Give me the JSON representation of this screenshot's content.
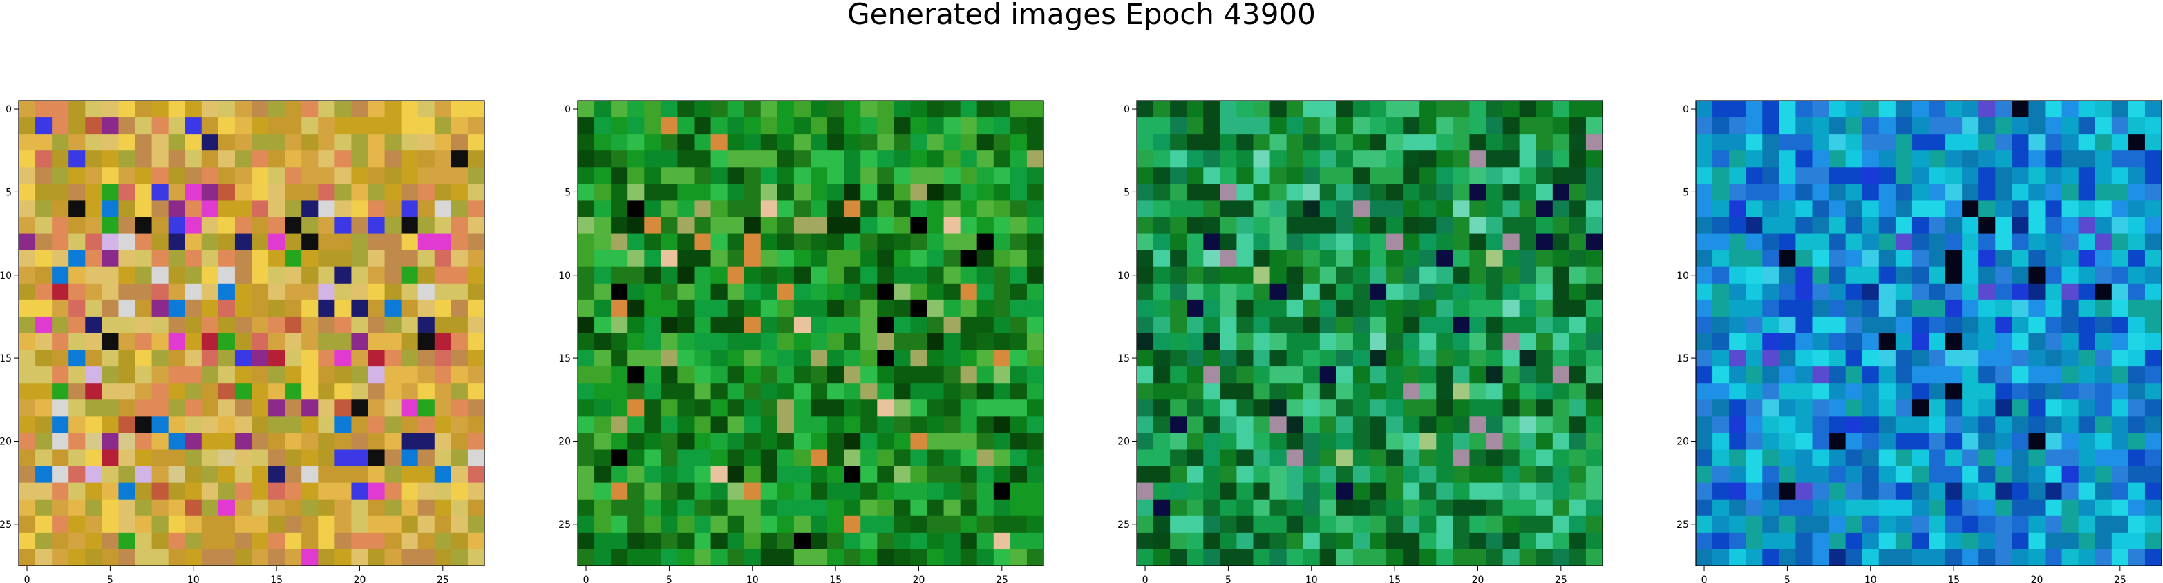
{
  "title": "Generated images Epoch 43900",
  "chart_data": [
    {
      "type": "heatmap",
      "image_size": 28,
      "x_ticks": [
        0,
        5,
        10,
        15,
        20,
        25
      ],
      "y_ticks": [
        0,
        5,
        10,
        15,
        20,
        25
      ],
      "xlim": [
        -0.5,
        27.5
      ],
      "ylim": [
        27.5,
        -0.5
      ],
      "palette": [
        "#c9a31f",
        "#b59b26",
        "#d4a440",
        "#e08a57",
        "#a5a53a",
        "#d6c565",
        "#e4b748",
        "#c69a2e",
        "#e0c26a",
        "#bf8a4b",
        "#f2cf4a",
        "#d46b5c",
        "#d6c98a",
        "#c05a3a",
        "#3b39e6",
        "#1d1b6e",
        "#0c7bd8",
        "#d3b4e6",
        "#8b2a8a",
        "#0f0f0f",
        "#26a51f",
        "#b62036",
        "#d7d7d7",
        "#e03ad0"
      ],
      "dominant": [
        0,
        1,
        2,
        3,
        4,
        5,
        6,
        7,
        8,
        9,
        10
      ]
    },
    {
      "type": "heatmap",
      "image_size": 28,
      "x_ticks": [
        0,
        5,
        10,
        15,
        20,
        25
      ],
      "y_ticks": [
        0,
        5,
        10,
        15,
        20,
        25
      ],
      "xlim": [
        -0.5,
        27.5
      ],
      "ylim": [
        27.5,
        -0.5
      ],
      "palette": [
        "#0a7d1a",
        "#149a22",
        "#0e6a12",
        "#1aa83a",
        "#0c5c10",
        "#2dbd4a",
        "#0b8a2c",
        "#3ea52a",
        "#084a0c",
        "#52b43c",
        "#0f9f3f",
        "#1f7a1a",
        "#063306",
        "#a3a860",
        "#e9c39e",
        "#d78a3c",
        "#000000",
        "#8ac26a"
      ],
      "dominant": [
        0,
        1,
        2,
        3,
        4,
        5,
        6,
        7,
        8,
        9,
        10,
        11
      ]
    },
    {
      "type": "heatmap",
      "image_size": 28,
      "x_ticks": [
        0,
        5,
        10,
        15,
        20,
        25
      ],
      "y_ticks": [
        0,
        5,
        10,
        15,
        20,
        25
      ],
      "xlim": [
        -0.5,
        27.5
      ],
      "ylim": [
        27.5,
        -0.5
      ],
      "palette": [
        "#0a8a3a",
        "#129e4a",
        "#0b6e2a",
        "#1fb060",
        "#0c7a1f",
        "#27a84d",
        "#06501e",
        "#3dc27a",
        "#0e9a5a",
        "#1a8a2a",
        "#074a18",
        "#44cf9e",
        "#2ab480",
        "#0f7f4f",
        "#052a20",
        "#a58ca0",
        "#0a0b40",
        "#6fd8b8",
        "#a3c880"
      ],
      "dominant": [
        0,
        1,
        2,
        3,
        4,
        5,
        6,
        7,
        8,
        9,
        10,
        11,
        12,
        13
      ]
    },
    {
      "type": "heatmap",
      "image_size": 28,
      "x_ticks": [
        0,
        5,
        10,
        15,
        20,
        25
      ],
      "y_ticks": [
        0,
        5,
        10,
        15,
        20,
        25
      ],
      "xlim": [
        -0.5,
        27.5
      ],
      "ylim": [
        27.5,
        -0.5
      ],
      "palette": [
        "#0b8fc2",
        "#0aa4c8",
        "#1a6cd2",
        "#0fbcd0",
        "#0a7ab0",
        "#1e90e6",
        "#0d5fb8",
        "#13c8df",
        "#12a39a",
        "#2a7fd8",
        "#0b46c8",
        "#1fd6e6",
        "#0a2a8a",
        "#05051a",
        "#5a4ad0",
        "#3acde8",
        "#1a3ad8"
      ],
      "dominant": [
        0,
        1,
        2,
        3,
        4,
        5,
        6,
        7,
        8,
        9,
        10,
        11
      ]
    }
  ]
}
